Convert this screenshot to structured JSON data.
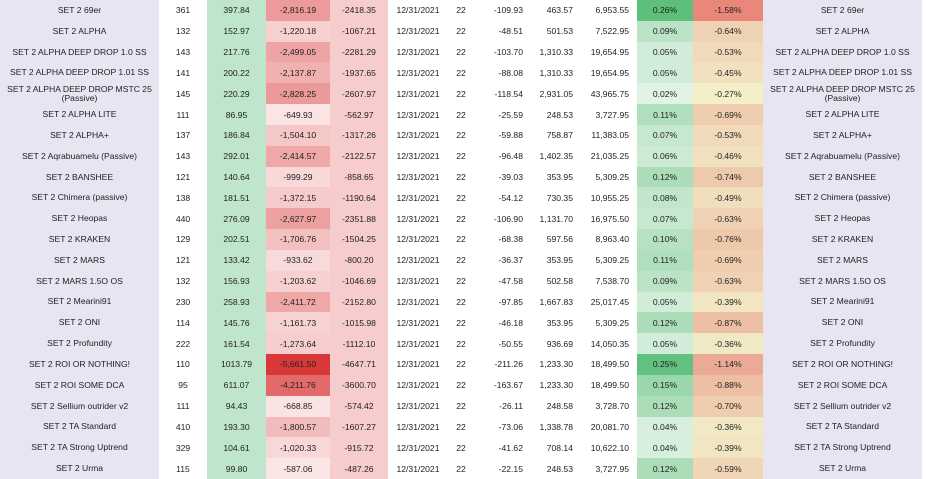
{
  "colors": {
    "name_bg": "#e9e4f2",
    "avg_bg": "#bfe6cc",
    "neg2_bg": "#f6cccc",
    "pos_scale": [
      "#e2f3e6",
      "#5dbf7a"
    ],
    "neg_scale": [
      "#fbe6e6",
      "#d93838"
    ],
    "pct2_scale": [
      "#f2efc9",
      "#e8877a"
    ]
  },
  "rows": [
    {
      "name": "SET 2 69er",
      "count": "361",
      "avg": "397.84",
      "neg1": "-2,816.19",
      "neg2": "-2418.35",
      "date": "12/31/2021",
      "days": "22",
      "r1": "-109.93",
      "r2": "463.57",
      "r3": "6,953.55",
      "p1": "0.26%",
      "p2": "-1.58%",
      "name2": "SET 2 69er"
    },
    {
      "name": "SET 2 ALPHA",
      "count": "132",
      "avg": "152.97",
      "neg1": "-1,220.18",
      "neg2": "-1067.21",
      "date": "12/31/2021",
      "days": "22",
      "r1": "-48.51",
      "r2": "501.53",
      "r3": "7,522.95",
      "p1": "0.09%",
      "p2": "-0.64%",
      "name2": "SET 2 ALPHA"
    },
    {
      "name": "SET 2 ALPHA DEEP DROP 1.0 SS",
      "count": "143",
      "avg": "217.76",
      "neg1": "-2,499.05",
      "neg2": "-2281.29",
      "date": "12/31/2021",
      "days": "22",
      "r1": "-103.70",
      "r2": "1,310.33",
      "r3": "19,654.95",
      "p1": "0.05%",
      "p2": "-0.53%",
      "name2": "SET 2 ALPHA DEEP DROP 1.0 SS"
    },
    {
      "name": "SET 2 ALPHA DEEP DROP 1.01 SS",
      "count": "141",
      "avg": "200.22",
      "neg1": "-2,137.87",
      "neg2": "-1937.65",
      "date": "12/31/2021",
      "days": "22",
      "r1": "-88.08",
      "r2": "1,310.33",
      "r3": "19,654.95",
      "p1": "0.05%",
      "p2": "-0.45%",
      "name2": "SET 2 ALPHA DEEP DROP 1.01 SS"
    },
    {
      "name": "SET 2 ALPHA DEEP DROP MSTC 25 (Passive)",
      "count": "145",
      "avg": "220.29",
      "neg1": "-2,828.25",
      "neg2": "-2607.97",
      "date": "12/31/2021",
      "days": "22",
      "r1": "-118.54",
      "r2": "2,931.05",
      "r3": "43,965.75",
      "p1": "0.02%",
      "p2": "-0.27%",
      "name2": "SET 2 ALPHA DEEP DROP MSTC 25 (Passive)"
    },
    {
      "name": "SET 2 ALPHA LITE",
      "count": "111",
      "avg": "86.95",
      "neg1": "-649.93",
      "neg2": "-562.97",
      "date": "12/31/2021",
      "days": "22",
      "r1": "-25.59",
      "r2": "248.53",
      "r3": "3,727.95",
      "p1": "0.11%",
      "p2": "-0.69%",
      "name2": "SET 2 ALPHA LITE"
    },
    {
      "name": "SET 2 ALPHA+",
      "count": "137",
      "avg": "186.84",
      "neg1": "-1,504.10",
      "neg2": "-1317.26",
      "date": "12/31/2021",
      "days": "22",
      "r1": "-59.88",
      "r2": "758.87",
      "r3": "11,383.05",
      "p1": "0.07%",
      "p2": "-0.53%",
      "name2": "SET 2 ALPHA+"
    },
    {
      "name": "SET 2 Aqrabuamelu (Passive)",
      "count": "143",
      "avg": "292.01",
      "neg1": "-2,414.57",
      "neg2": "-2122.57",
      "date": "12/31/2021",
      "days": "22",
      "r1": "-96.48",
      "r2": "1,402.35",
      "r3": "21,035.25",
      "p1": "0.06%",
      "p2": "-0.46%",
      "name2": "SET 2 Aqrabuamelu (Passive)"
    },
    {
      "name": "SET 2 BANSHEE",
      "count": "121",
      "avg": "140.64",
      "neg1": "-999.29",
      "neg2": "-858.65",
      "date": "12/31/2021",
      "days": "22",
      "r1": "-39.03",
      "r2": "353.95",
      "r3": "5,309.25",
      "p1": "0.12%",
      "p2": "-0.74%",
      "name2": "SET 2 BANSHEE"
    },
    {
      "name": "SET 2 Chimera (passive)",
      "count": "138",
      "avg": "181.51",
      "neg1": "-1,372.15",
      "neg2": "-1190.64",
      "date": "12/31/2021",
      "days": "22",
      "r1": "-54.12",
      "r2": "730.35",
      "r3": "10,955.25",
      "p1": "0.08%",
      "p2": "-0.49%",
      "name2": "SET 2 Chimera (passive)"
    },
    {
      "name": "SET 2 Heopas",
      "count": "440",
      "avg": "276.09",
      "neg1": "-2,627.97",
      "neg2": "-2351.88",
      "date": "12/31/2021",
      "days": "22",
      "r1": "-106.90",
      "r2": "1,131.70",
      "r3": "16,975.50",
      "p1": "0.07%",
      "p2": "-0.63%",
      "name2": "SET 2 Heopas"
    },
    {
      "name": "SET 2 KRAKEN",
      "count": "129",
      "avg": "202.51",
      "neg1": "-1,706.76",
      "neg2": "-1504.25",
      "date": "12/31/2021",
      "days": "22",
      "r1": "-68.38",
      "r2": "597.56",
      "r3": "8,963.40",
      "p1": "0.10%",
      "p2": "-0.76%",
      "name2": "SET 2 KRAKEN"
    },
    {
      "name": "SET 2 MARS",
      "count": "121",
      "avg": "133.42",
      "neg1": "-933.62",
      "neg2": "-800.20",
      "date": "12/31/2021",
      "days": "22",
      "r1": "-36.37",
      "r2": "353.95",
      "r3": "5,309.25",
      "p1": "0.11%",
      "p2": "-0.69%",
      "name2": "SET 2 MARS"
    },
    {
      "name": "SET 2 MARS 1.5O OS",
      "count": "132",
      "avg": "156.93",
      "neg1": "-1,203.62",
      "neg2": "-1046.69",
      "date": "12/31/2021",
      "days": "22",
      "r1": "-47.58",
      "r2": "502.58",
      "r3": "7,538.70",
      "p1": "0.09%",
      "p2": "-0.63%",
      "name2": "SET 2 MARS 1.5O OS"
    },
    {
      "name": "SET 2 Mearini91",
      "count": "230",
      "avg": "258.93",
      "neg1": "-2,411.72",
      "neg2": "-2152.80",
      "date": "12/31/2021",
      "days": "22",
      "r1": "-97.85",
      "r2": "1,667.83",
      "r3": "25,017.45",
      "p1": "0.05%",
      "p2": "-0.39%",
      "name2": "SET 2 Mearini91"
    },
    {
      "name": "SET 2 ONI",
      "count": "114",
      "avg": "145.76",
      "neg1": "-1,161.73",
      "neg2": "-1015.98",
      "date": "12/31/2021",
      "days": "22",
      "r1": "-46.18",
      "r2": "353.95",
      "r3": "5,309.25",
      "p1": "0.12%",
      "p2": "-0.87%",
      "name2": "SET 2 ONI"
    },
    {
      "name": "SET 2 Profundity",
      "count": "222",
      "avg": "161.54",
      "neg1": "-1,273.64",
      "neg2": "-1112.10",
      "date": "12/31/2021",
      "days": "22",
      "r1": "-50.55",
      "r2": "936.69",
      "r3": "14,050.35",
      "p1": "0.05%",
      "p2": "-0.36%",
      "name2": "SET 2 Profundity"
    },
    {
      "name": "SET 2 ROI OR NOTHING!",
      "count": "110",
      "avg": "1013.79",
      "neg1": "-5,661.50",
      "neg2": "-4647.71",
      "date": "12/31/2021",
      "days": "22",
      "r1": "-211.26",
      "r2": "1,233.30",
      "r3": "18,499.50",
      "p1": "0.25%",
      "p2": "-1.14%",
      "name2": "SET 2 ROI OR NOTHING!"
    },
    {
      "name": "SET 2 ROI SOME DCA",
      "count": "95",
      "avg": "611.07",
      "neg1": "-4,211.76",
      "neg2": "-3600.70",
      "date": "12/31/2021",
      "days": "22",
      "r1": "-163.67",
      "r2": "1,233.30",
      "r3": "18,499.50",
      "p1": "0.15%",
      "p2": "-0.88%",
      "name2": "SET 2 ROI SOME DCA"
    },
    {
      "name": "SET 2 Sellium outrider v2",
      "count": "111",
      "avg": "94.43",
      "neg1": "-668.85",
      "neg2": "-574.42",
      "date": "12/31/2021",
      "days": "22",
      "r1": "-26.11",
      "r2": "248.58",
      "r3": "3,728.70",
      "p1": "0.12%",
      "p2": "-0.70%",
      "name2": "SET 2 Sellium outrider v2"
    },
    {
      "name": "SET 2 TA Standard",
      "count": "410",
      "avg": "193.30",
      "neg1": "-1,800.57",
      "neg2": "-1607.27",
      "date": "12/31/2021",
      "days": "22",
      "r1": "-73.06",
      "r2": "1,338.78",
      "r3": "20,081.70",
      "p1": "0.04%",
      "p2": "-0.36%",
      "name2": "SET 2 TA Standard"
    },
    {
      "name": "SET 2 TA Strong Uptrend",
      "count": "329",
      "avg": "104.61",
      "neg1": "-1,020.33",
      "neg2": "-915.72",
      "date": "12/31/2021",
      "days": "22",
      "r1": "-41.62",
      "r2": "708.14",
      "r3": "10,622.10",
      "p1": "0.04%",
      "p2": "-0.39%",
      "name2": "SET 2 TA Strong Uptrend"
    },
    {
      "name": "SET 2 Urma",
      "count": "115",
      "avg": "99.80",
      "neg1": "-587.06",
      "neg2": "-487.26",
      "date": "12/31/2021",
      "days": "22",
      "r1": "-22.15",
      "r2": "248.53",
      "r3": "3,727.95",
      "p1": "0.12%",
      "p2": "-0.59%",
      "name2": "SET 2 Urma"
    }
  ]
}
